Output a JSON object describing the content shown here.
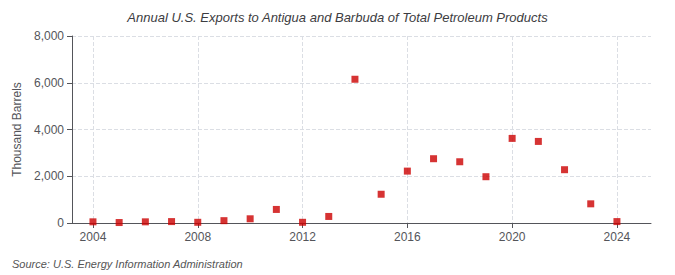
{
  "chart_data": {
    "type": "scatter",
    "title": "Annual U.S. Exports to Antigua and Barbuda of Total Petroleum Products",
    "ylabel": "Thousand Barrels",
    "annotations": [
      "Source: U.S. Energy Information Administration"
    ],
    "x": [
      2004,
      2005,
      2006,
      2007,
      2008,
      2009,
      2010,
      2011,
      2012,
      2013,
      2014,
      2015,
      2016,
      2017,
      2018,
      2019,
      2020,
      2021,
      2022,
      2023,
      2024
    ],
    "values": [
      50,
      20,
      50,
      60,
      30,
      100,
      180,
      580,
      30,
      280,
      6150,
      1230,
      2220,
      2750,
      2620,
      1980,
      3620,
      3490,
      2280,
      820,
      60
    ],
    "color": "#cc0000",
    "marker": "square",
    "xlim": [
      2003.2,
      2025.3
    ],
    "xticks": [
      2004,
      2008,
      2012,
      2016,
      2020,
      2024
    ],
    "ylim": [
      0,
      8000
    ],
    "yticks": [
      0,
      {
        "value": 2000,
        "label": "2,000"
      },
      {
        "value": 4000,
        "label": "4,000"
      },
      {
        "value": 6000,
        "label": "6,000"
      },
      {
        "value": 8000,
        "label": "8,000"
      }
    ],
    "grid": true
  }
}
